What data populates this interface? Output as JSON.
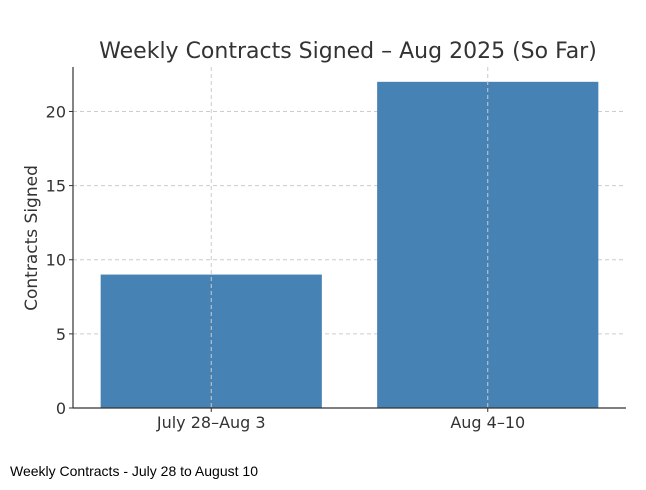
{
  "chart_data": {
    "type": "bar",
    "title": "Weekly Contracts Signed – Aug 2025 (So Far)",
    "xlabel": "",
    "ylabel": "Contracts Signed",
    "categories": [
      "July 28–Aug 3",
      "Aug 4–10"
    ],
    "values": [
      9,
      22
    ],
    "ylim": [
      0,
      23
    ],
    "yticks": [
      0,
      5,
      10,
      15,
      20
    ],
    "grid": true,
    "bar_color": "#4682b4"
  },
  "caption": "Weekly Contracts - July 28 to August 10"
}
